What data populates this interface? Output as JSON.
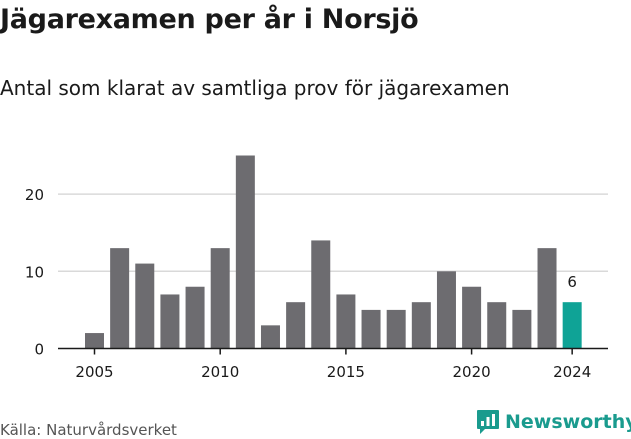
{
  "title": "Jägarexamen per år i Norsjö",
  "subtitle": "Antal som klarat av samtliga prov för jägarexamen",
  "source": "Källa: Naturvårdsverket",
  "brand": {
    "name": "Newsworthy",
    "icon": "newsworthy-logo-icon",
    "color": "#1a9b8e"
  },
  "chart_data": {
    "type": "bar",
    "title": "Jägarexamen per år i Norsjö",
    "subtitle": "Antal som klarat av samtliga prov för jägarexamen",
    "x": [
      2005,
      2006,
      2007,
      2008,
      2009,
      2010,
      2011,
      2012,
      2013,
      2014,
      2015,
      2016,
      2017,
      2018,
      2019,
      2020,
      2021,
      2022,
      2023,
      2024
    ],
    "values": [
      2,
      13,
      11,
      7,
      8,
      13,
      25,
      3,
      6,
      14,
      7,
      5,
      5,
      6,
      10,
      8,
      6,
      5,
      13,
      6
    ],
    "xticks": [
      "2005",
      "2010",
      "2015",
      "2020",
      "2024"
    ],
    "yticks": [
      0,
      10,
      20
    ],
    "ylim": [
      0,
      25
    ],
    "grid": true,
    "colors": {
      "bar": "#6d6c70",
      "highlight": "#0fa396",
      "grid": "#d9d9d9",
      "axis": "#1a1a1a"
    },
    "highlight_label": "6"
  }
}
